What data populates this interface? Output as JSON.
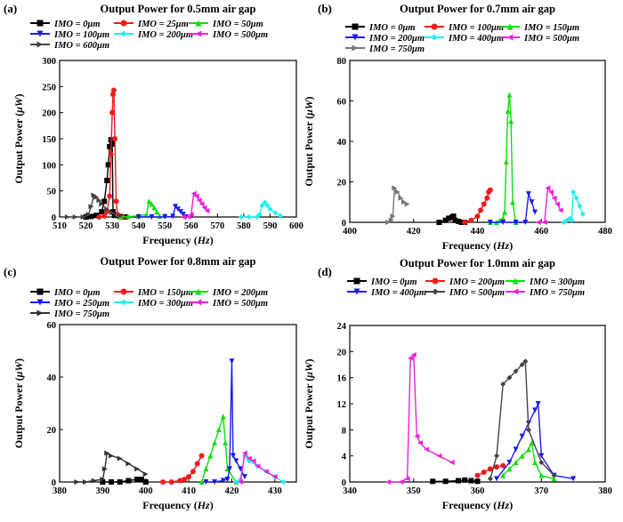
{
  "figure": {
    "panels": [
      {
        "label": "(a)",
        "title": "Output Power for 0.5mm air gap",
        "xlabel_pre": "Frequency (",
        "xlabel_unit": "Hz",
        "xlabel_post": ")",
        "ylabel_pre": "Output Power (",
        "ylabel_unit": "μW",
        "ylabel_post": ")"
      },
      {
        "label": "(b)",
        "title": "Output Power for 0.7mm air gap",
        "xlabel_pre": "Frequency (",
        "xlabel_unit": "Hz",
        "xlabel_post": ")",
        "ylabel_pre": "Output Power (",
        "ylabel_unit": "μW",
        "ylabel_post": ")"
      },
      {
        "label": "(c)",
        "title": "Output Power for 0.8mm air gap",
        "xlabel_pre": "Frequency (",
        "xlabel_unit": "Hz",
        "xlabel_post": ")",
        "ylabel_pre": "Output Power (",
        "ylabel_unit": "μW",
        "ylabel_post": ")"
      },
      {
        "label": "(d)",
        "title": "Output Power for 1.0mm air gap",
        "xlabel_pre": "Frequency (",
        "xlabel_unit": "Hz",
        "xlabel_post": ")",
        "ylabel_pre": "Output Power (",
        "ylabel_unit": "μW",
        "ylabel_post": ")"
      }
    ]
  },
  "chart_data": [
    {
      "type": "line",
      "title": "Output Power for 0.5mm air gap",
      "xlabel": "Frequency (Hz)",
      "ylabel": "Output Power (μW)",
      "xlim": [
        510,
        600
      ],
      "ylim": [
        0,
        300
      ],
      "xticks": [
        510,
        520,
        530,
        540,
        550,
        560,
        570,
        580,
        590,
        600
      ],
      "yticks": [
        0,
        50,
        100,
        150,
        200,
        250,
        300
      ],
      "legend_position": "top",
      "series": [
        {
          "name": "IMO = 0μm",
          "color": "#000000",
          "marker": "square",
          "x": [
            520,
            522,
            524,
            526,
            527,
            528,
            528.5,
            529,
            529.5,
            530,
            530.3,
            531,
            533,
            535
          ],
          "y": [
            0,
            1,
            3,
            10,
            30,
            70,
            100,
            135,
            148,
            140,
            10,
            3,
            1,
            0
          ]
        },
        {
          "name": "IMO = 25μm",
          "color": "#ee1c1c",
          "marker": "circle",
          "x": [
            525,
            527,
            528,
            529,
            529.5,
            530,
            530.3,
            530.6,
            531,
            531.5,
            532,
            534
          ],
          "y": [
            0,
            2,
            10,
            40,
            120,
            200,
            235,
            243,
            150,
            30,
            5,
            0
          ]
        },
        {
          "name": "IMO = 50μm",
          "color": "#11dd11",
          "marker": "triangle-up",
          "x": [
            533,
            536,
            540,
            543,
            544,
            545,
            546,
            547,
            548
          ],
          "y": [
            0,
            1,
            2,
            5,
            30,
            25,
            18,
            10,
            2
          ]
        },
        {
          "name": "IMO = 100μm",
          "color": "#1a1aee",
          "marker": "triangle-down",
          "x": [
            540,
            545,
            550,
            553,
            554,
            555,
            556,
            557,
            558
          ],
          "y": [
            0,
            0,
            0,
            1,
            20,
            15,
            10,
            5,
            0
          ]
        },
        {
          "name": "IMO = 200μm",
          "color": "#22eeee",
          "marker": "diamond",
          "x": [
            579,
            582,
            585,
            586,
            587,
            588,
            589,
            590,
            592,
            594
          ],
          "y": [
            0,
            0,
            0,
            5,
            22,
            28,
            22,
            15,
            8,
            2
          ]
        },
        {
          "name": "IMO = 500μm",
          "color": "#ee22dd",
          "marker": "triangle-left",
          "x": [
            557,
            559,
            560,
            561,
            562,
            563,
            564,
            565,
            566
          ],
          "y": [
            0,
            0,
            5,
            45,
            40,
            32,
            25,
            18,
            12
          ]
        },
        {
          "name": "IMO = 600μm",
          "color": "#444444",
          "marker": "triangle-right",
          "x": [
            513,
            516,
            519,
            521,
            522,
            523,
            524,
            525,
            526,
            528,
            530,
            533
          ],
          "y": [
            0,
            0,
            0,
            5,
            20,
            42,
            38,
            32,
            25,
            15,
            8,
            2
          ]
        }
      ]
    },
    {
      "type": "line",
      "title": "Output Power for 0.7mm air gap",
      "xlabel": "Frequency (Hz)",
      "ylabel": "Output Power (μW)",
      "xlim": [
        400,
        480
      ],
      "ylim": [
        0,
        80
      ],
      "xticks": [
        400,
        420,
        440,
        460,
        480
      ],
      "yticks": [
        0,
        20,
        40,
        60,
        80
      ],
      "legend_position": "top",
      "series": [
        {
          "name": "IMO = 0μm",
          "color": "#000000",
          "marker": "square",
          "x": [
            428,
            430,
            431,
            432,
            432.5,
            433,
            434,
            435,
            436
          ],
          "y": [
            0,
            1,
            2,
            2.5,
            3,
            1,
            0.5,
            0,
            0
          ]
        },
        {
          "name": "IMO = 100μm",
          "color": "#ee1c1c",
          "marker": "circle",
          "x": [
            436,
            438,
            440,
            441,
            442,
            443,
            443.5,
            444
          ],
          "y": [
            0,
            1,
            3,
            6,
            9,
            12,
            15,
            16
          ]
        },
        {
          "name": "IMO = 150μm",
          "color": "#11dd11",
          "marker": "triangle-up",
          "x": [
            444,
            446,
            447,
            448,
            448.5,
            449,
            449.5,
            450,
            450.5,
            451,
            452
          ],
          "y": [
            0,
            0,
            1,
            2,
            5,
            30,
            55,
            63,
            50,
            10,
            0
          ]
        },
        {
          "name": "IMO = 200μm",
          "color": "#1a1aee",
          "marker": "triangle-down",
          "x": [
            444,
            448,
            452,
            455,
            456,
            457,
            458
          ],
          "y": [
            0,
            0,
            0,
            0,
            14,
            10,
            5
          ]
        },
        {
          "name": "IMO = 400μm",
          "color": "#22eeee",
          "marker": "diamond",
          "x": [
            467,
            468,
            469,
            469.5,
            470,
            471,
            472,
            473
          ],
          "y": [
            0,
            1,
            2,
            1,
            15,
            12,
            8,
            4
          ]
        },
        {
          "name": "IMO = 500μm",
          "color": "#ee22dd",
          "marker": "triangle-left",
          "x": [
            459,
            461,
            462,
            463,
            464,
            465,
            466
          ],
          "y": [
            0,
            0,
            17,
            15,
            12,
            9,
            6
          ]
        },
        {
          "name": "IMO = 750μm",
          "color": "#777777",
          "marker": "triangle-right",
          "x": [
            412,
            413,
            413.5,
            414,
            415,
            416,
            417,
            418
          ],
          "y": [
            0,
            1,
            3,
            17,
            15,
            12,
            10,
            9
          ]
        }
      ]
    },
    {
      "type": "line",
      "title": "Output Power for 0.8mm air gap",
      "xlabel": "Frequency (Hz)",
      "ylabel": "Output Power (μW)",
      "xlim": [
        380,
        435
      ],
      "ylim": [
        0,
        60
      ],
      "xticks": [
        380,
        390,
        400,
        410,
        420,
        430
      ],
      "yticks": [
        0,
        20,
        40,
        60
      ],
      "legend_position": "top",
      "series": [
        {
          "name": "IMO = 0μm",
          "color": "#000000",
          "marker": "square",
          "x": [
            390,
            392,
            394,
            396,
            398,
            399,
            400
          ],
          "y": [
            0,
            0,
            0,
            0.5,
            1,
            1,
            0
          ]
        },
        {
          "name": "IMO = 150μm",
          "color": "#ee1c1c",
          "marker": "circle",
          "x": [
            404,
            406,
            408,
            409,
            410,
            411,
            412,
            413
          ],
          "y": [
            0,
            0,
            0.5,
            1,
            2,
            4,
            7,
            10
          ]
        },
        {
          "name": "IMO = 200μm",
          "color": "#11dd11",
          "marker": "triangle-up",
          "x": [
            413,
            414,
            415,
            416,
            417,
            418,
            418.5,
            419,
            421
          ],
          "y": [
            0,
            5,
            10,
            15,
            20,
            25,
            15,
            5,
            0
          ]
        },
        {
          "name": "IMO = 250μm",
          "color": "#1a1aee",
          "marker": "triangle-down",
          "x": [
            414,
            416,
            418,
            419,
            419.5,
            420,
            420.3,
            421,
            422,
            423
          ],
          "y": [
            0,
            0,
            0.5,
            1,
            5,
            46,
            10,
            8,
            5,
            2
          ]
        },
        {
          "name": "IMO = 300μm",
          "color": "#22eeee",
          "marker": "diamond",
          "x": [
            421,
            422,
            423,
            424,
            426,
            428,
            430,
            432
          ],
          "y": [
            0,
            1,
            10,
            8,
            6,
            4,
            2,
            0
          ]
        },
        {
          "name": "IMO = 500μm",
          "color": "#ee22dd",
          "marker": "triangle-left",
          "x": [
            422,
            423,
            424,
            425,
            426,
            428,
            430
          ],
          "y": [
            0,
            11,
            9,
            8,
            6,
            4,
            2
          ]
        },
        {
          "name": "IMO = 750μm",
          "color": "#333333",
          "marker": "triangle-right",
          "x": [
            384,
            386,
            388,
            390,
            390.5,
            391,
            392,
            394,
            396,
            398,
            400
          ],
          "y": [
            0,
            0,
            0.5,
            1,
            5,
            11,
            10,
            9,
            7,
            5,
            3
          ]
        }
      ]
    },
    {
      "type": "line",
      "title": "Output Power for 1.0mm air gap",
      "xlabel": "Frequency (Hz)",
      "ylabel": "Output Power (μW)",
      "xlim": [
        340,
        380
      ],
      "ylim": [
        0,
        24
      ],
      "xticks": [
        340,
        350,
        360,
        370,
        380
      ],
      "yticks": [
        0,
        4,
        8,
        12,
        16,
        20,
        24
      ],
      "legend_position": "top",
      "series": [
        {
          "name": "IMO = 0μm",
          "color": "#000000",
          "marker": "square",
          "x": [
            353,
            355,
            357,
            358,
            359,
            360
          ],
          "y": [
            0.1,
            0.1,
            0.2,
            0.3,
            0.2,
            0.1
          ]
        },
        {
          "name": "IMO = 200μm",
          "color": "#ee1c1c",
          "marker": "circle",
          "x": [
            360,
            361,
            362,
            363,
            364
          ],
          "y": [
            1,
            1.5,
            2,
            2.3,
            2.5
          ]
        },
        {
          "name": "IMO = 300μm",
          "color": "#11dd11",
          "marker": "triangle-up",
          "x": [
            364,
            365,
            366,
            367,
            368,
            368.5,
            369,
            370,
            372
          ],
          "y": [
            1,
            2,
            3,
            4,
            5,
            6,
            3,
            1,
            0.5
          ]
        },
        {
          "name": "IMO = 400μm",
          "color": "#1a1aee",
          "marker": "triangle-down",
          "x": [
            363,
            365,
            366,
            367,
            368,
            369,
            369.5,
            370,
            372,
            375
          ],
          "y": [
            0.5,
            3,
            5,
            7,
            9,
            11,
            12,
            4,
            1,
            0.5
          ]
        },
        {
          "name": "IMO = 500μm",
          "color": "#444444",
          "marker": "diamond",
          "x": [
            362,
            363,
            364,
            365,
            366,
            367,
            367.5,
            368,
            370,
            372
          ],
          "y": [
            0.5,
            4,
            15,
            16,
            17,
            18,
            18.5,
            8,
            3,
            1
          ]
        },
        {
          "name": "IMO = 750μm",
          "color": "#ee22dd",
          "marker": "triangle-left",
          "x": [
            346,
            348,
            349,
            349.5,
            350,
            350.5,
            351,
            352,
            354,
            356
          ],
          "y": [
            0,
            0,
            0.5,
            19,
            19.5,
            7,
            6,
            5,
            4,
            3
          ]
        }
      ]
    }
  ]
}
